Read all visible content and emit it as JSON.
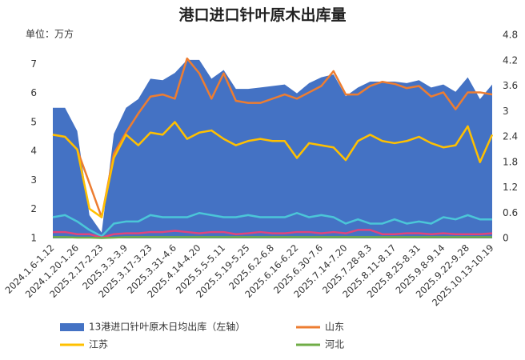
{
  "chart_data": {
    "type": "combo",
    "title": "港口进口针叶原木出库量",
    "y_unit": "单位：万方",
    "categories": [
      "2024.1.6-1.12",
      null,
      "2024.1.20-1.26",
      null,
      "2025.2.17-2.23",
      null,
      "2025.3.3-3.9",
      null,
      "2025.3.17-3.23",
      null,
      "2025.3.31-4.6",
      null,
      "2025.4.14-4.20",
      null,
      "2025.5.5-5.11",
      null,
      "2025.5.19-5.25",
      null,
      "2025.6.2-6.8",
      null,
      "2025.6.16-6.22",
      null,
      "2025.6.30-7.6",
      null,
      "2025.7.14-7.20",
      null,
      "2025.7.28-8.3",
      null,
      "2025.8.11-8.17",
      null,
      "2025.8.25-8.31",
      null,
      "2025.9.8-9.14",
      null,
      "2025.9.22-9.28",
      null,
      "2025.10.13-10.19"
    ],
    "ylim": [
      1,
      8
    ],
    "yticks": [
      1,
      2,
      3,
      4,
      5,
      6,
      7
    ],
    "y2lim": [
      0,
      4.8
    ],
    "y2ticks": [
      0,
      0.6,
      1.2,
      1.8,
      2.4,
      3,
      3.6,
      4.2,
      4.8
    ],
    "series": [
      {
        "name": "13港进口针叶原木日均出库（左轴）",
        "kind": "area",
        "color": "#4472c4",
        "values": [
          5.5,
          5.5,
          4.7,
          1.8,
          1.2,
          4.6,
          5.5,
          5.8,
          6.5,
          6.45,
          6.7,
          7.15,
          7.15,
          6.5,
          6.8,
          6.15,
          6.15,
          6.2,
          6.25,
          6.3,
          6.0,
          6.35,
          6.55,
          6.65,
          5.9,
          6.2,
          6.4,
          6.4,
          6.4,
          6.35,
          6.45,
          6.2,
          6.3,
          6.05,
          6.55,
          5.8,
          6.3
        ]
      },
      {
        "name": "山东",
        "kind": "line",
        "axis": "y2",
        "color": "#ed7d31",
        "values": [
          2.45,
          2.4,
          2.1,
          1.3,
          0.5,
          2.0,
          2.5,
          2.95,
          3.35,
          3.4,
          3.3,
          4.25,
          3.9,
          3.3,
          3.9,
          3.25,
          3.2,
          3.2,
          3.3,
          3.4,
          3.3,
          3.45,
          3.6,
          3.95,
          3.4,
          3.4,
          3.6,
          3.7,
          3.65,
          3.55,
          3.6,
          3.35,
          3.45,
          3.05,
          3.45,
          3.45,
          3.4
        ]
      },
      {
        "name": "江苏",
        "kind": "line",
        "axis": "y2",
        "color": "#ffc000",
        "values": [
          2.45,
          2.4,
          2.1,
          0.7,
          0.5,
          1.9,
          2.45,
          2.2,
          2.5,
          2.45,
          2.75,
          2.35,
          2.5,
          2.55,
          2.35,
          2.2,
          2.3,
          2.35,
          2.3,
          2.3,
          1.9,
          2.25,
          2.2,
          2.15,
          1.85,
          2.3,
          2.45,
          2.3,
          2.25,
          2.3,
          2.4,
          2.25,
          2.15,
          2.2,
          2.65,
          1.8,
          2.45
        ]
      },
      {
        "kind": "line",
        "axis": "y2",
        "color": "#4bc6d8",
        "values": [
          0.5,
          0.55,
          0.4,
          0.2,
          0.05,
          0.35,
          0.4,
          0.4,
          0.55,
          0.5,
          0.5,
          0.5,
          0.6,
          0.55,
          0.5,
          0.5,
          0.55,
          0.5,
          0.5,
          0.5,
          0.6,
          0.5,
          0.55,
          0.5,
          0.35,
          0.45,
          0.35,
          0.35,
          0.45,
          0.35,
          0.4,
          0.35,
          0.5,
          0.45,
          0.55,
          0.45,
          0.45
        ]
      },
      {
        "kind": "line",
        "axis": "y2",
        "color": "#e0457b",
        "values": [
          0.15,
          0.15,
          0.1,
          0.1,
          0.02,
          0.1,
          0.12,
          0.12,
          0.15,
          0.15,
          0.18,
          0.15,
          0.12,
          0.15,
          0.15,
          0.1,
          0.12,
          0.15,
          0.12,
          0.12,
          0.15,
          0.15,
          0.12,
          0.15,
          0.12,
          0.2,
          0.2,
          0.1,
          0.1,
          0.12,
          0.12,
          0.1,
          0.12,
          0.1,
          0.1,
          0.1,
          0.12
        ]
      },
      {
        "name": "河北",
        "kind": "line",
        "axis": "y2",
        "color": "#70ad47",
        "values": [
          0.03,
          0.03,
          0.02,
          0.02,
          0.01,
          0.02,
          0.03,
          0.03,
          0.03,
          0.03,
          0.03,
          0.03,
          0.03,
          0.03,
          0.03,
          0.03,
          0.03,
          0.03,
          0.03,
          0.03,
          0.03,
          0.03,
          0.03,
          0.03,
          0.03,
          0.03,
          0.03,
          0.03,
          0.03,
          0.03,
          0.03,
          0.03,
          0.03,
          0.03,
          0.03,
          0.03,
          0.03
        ]
      }
    ]
  }
}
